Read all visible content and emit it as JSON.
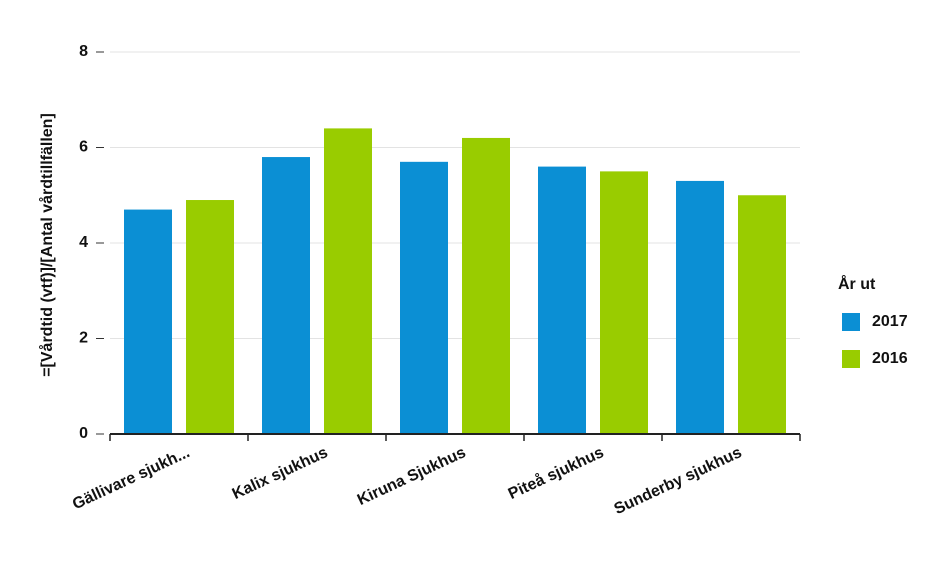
{
  "chart_data": {
    "type": "bar",
    "y_label": "=[Vårdtid (vtf)]/[Antal vårdtillfällen]",
    "categories": [
      "Gällivare sjukh...",
      "Kalix sjukhus",
      "Kiruna Sjukhus",
      "Piteå sjukhus",
      "Sunderby sjukhus"
    ],
    "legend_title": "År ut",
    "series": [
      {
        "name": "2017",
        "color": "#0b8fd4",
        "values": [
          4.7,
          5.8,
          5.7,
          5.6,
          5.3
        ]
      },
      {
        "name": "2016",
        "color": "#99cc00",
        "values": [
          4.9,
          6.4,
          6.2,
          5.5,
          5.0
        ]
      }
    ],
    "ylim": [
      0,
      8
    ],
    "yticks": [
      0,
      2,
      4,
      6,
      8
    ],
    "grid": true,
    "legend": "right"
  }
}
